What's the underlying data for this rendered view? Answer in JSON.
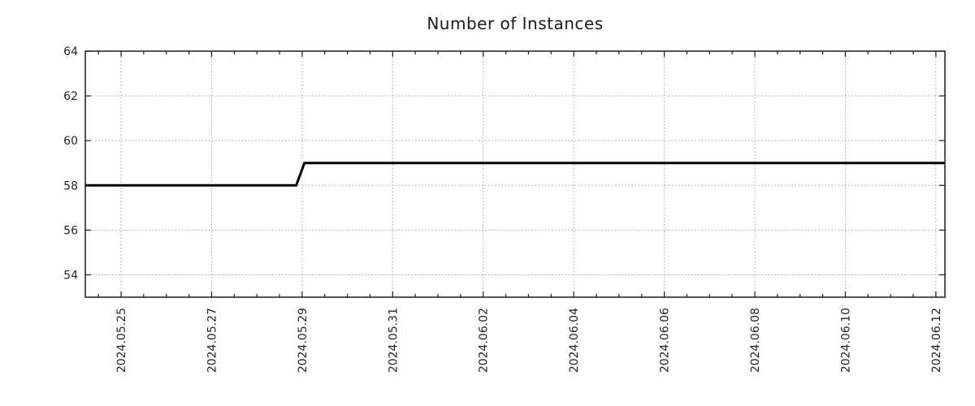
{
  "page": {
    "background": "#ffffff"
  },
  "chart_data": {
    "type": "line",
    "title": "Number of Instances",
    "xlabel": "",
    "ylabel": "",
    "legend": {
      "show": false
    },
    "grid": {
      "show": true,
      "style": "dotted",
      "color": "#a3a3a3"
    },
    "border_color": "#1c1c1c",
    "x_axis": {
      "tick_labels": [
        "2024.05.25",
        "2024.05.27",
        "2024.05.29",
        "2024.05.31",
        "2024.06.02",
        "2024.06.04",
        "2024.06.06",
        "2024.06.08",
        "2024.06.10",
        "2024.06.12"
      ],
      "tick_label_rotation_deg": 90,
      "major_interval_days": 2,
      "minor_tick_interval_days": 0.5,
      "xlim_days_from_first_tick": [
        -0.79,
        18.2
      ]
    },
    "y_axis": {
      "ticks": [
        54,
        56,
        58,
        60,
        62,
        64
      ],
      "ylim": [
        53,
        64
      ]
    },
    "series": [
      {
        "name": "Number of Instances",
        "color": "#000000",
        "line_width": 3,
        "points_day_value": [
          [
            -0.79,
            58
          ],
          [
            3.87,
            58
          ],
          [
            4.05,
            59
          ],
          [
            18.2,
            59
          ]
        ],
        "step_change": {
          "from": 58,
          "to": 59,
          "at_date": "2024.05.29"
        }
      }
    ]
  }
}
